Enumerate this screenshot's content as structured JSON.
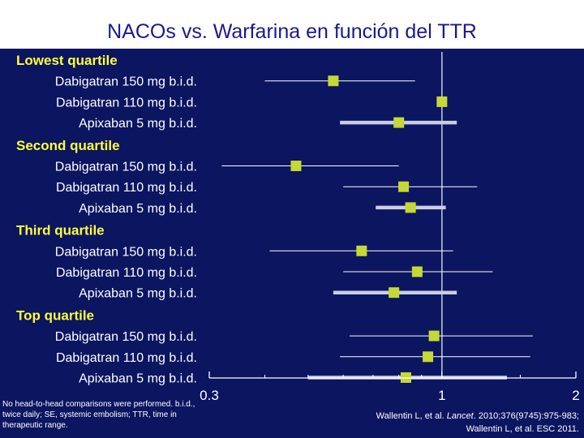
{
  "title": "NACOs vs. Warfarina en función del TTR",
  "chart_data": {
    "type": "forest",
    "x_scale": "log",
    "xlim": [
      0.3,
      2
    ],
    "reference_line": 1,
    "x_tick_labels": [
      "0.3",
      "1",
      "2"
    ],
    "groups": [
      {
        "label": "Lowest quartile",
        "rows": [
          {
            "label": "Dabigatran 150 mg b.i.d.",
            "estimate": 0.57,
            "ci": [
              0.4,
              0.87
            ],
            "ci_style": "thin"
          },
          {
            "label": "Dabigatran 110 mg b.i.d.",
            "estimate": 1.0,
            "ci": null,
            "ci_style": "none"
          },
          {
            "label": "Apixaban  5 mg b.i.d.",
            "estimate": 0.8,
            "ci": [
              0.59,
              1.08
            ],
            "ci_style": "thick"
          }
        ]
      },
      {
        "label": "Second quartile",
        "rows": [
          {
            "label": "Dabigatran 150 mg b.i.d.",
            "estimate": 0.47,
            "ci": [
              0.32,
              0.8
            ],
            "ci_style": "thin"
          },
          {
            "label": "Dabigatran 110 mg b.i.d.",
            "estimate": 0.82,
            "ci": [
              0.6,
              1.2
            ],
            "ci_style": "thin"
          },
          {
            "label": "Apixaban  5 mg b.i.d.",
            "estimate": 0.85,
            "ci": [
              0.71,
              1.02
            ],
            "ci_style": "thick"
          }
        ]
      },
      {
        "label": "Third quartile",
        "rows": [
          {
            "label": "Dabigatran 150 mg b.i.d.",
            "estimate": 0.66,
            "ci": [
              0.41,
              1.06
            ],
            "ci_style": "thin"
          },
          {
            "label": "Dabigatran 110 mg b.i.d.",
            "estimate": 0.88,
            "ci": [
              0.6,
              1.3
            ],
            "ci_style": "thin"
          },
          {
            "label": "Apixaban  5 mg b.i.d.",
            "estimate": 0.78,
            "ci": [
              0.57,
              1.08
            ],
            "ci_style": "thick"
          }
        ]
      },
      {
        "label": "Top quartile",
        "rows": [
          {
            "label": "Dabigatran 150 mg b.i.d.",
            "estimate": 0.96,
            "ci": [
              0.62,
              1.6
            ],
            "ci_style": "thin"
          },
          {
            "label": "Dabigatran 110 mg b.i.d.",
            "estimate": 0.93,
            "ci": [
              0.59,
              1.58
            ],
            "ci_style": "thin"
          },
          {
            "label": "Apixaban  5 mg b.i.d.",
            "estimate": 0.83,
            "ci": [
              0.5,
              1.4
            ],
            "ci_style": "thick"
          }
        ]
      }
    ],
    "colors": {
      "background": "#0b1560",
      "marker": "#c6d834",
      "ci_thin": "#ffffff",
      "ci_thick": "#c9cfe2",
      "group_label": "#ffff3a",
      "title": "#1a1a8c"
    }
  },
  "footnote": "No head-to-head comparisons were performed. b.i.d., twice daily; SE, systemic embolism; TTR, time in therapeutic range.",
  "references": {
    "line1_authors": "Wallentin L, et al. ",
    "line1_journal": "Lancet",
    "line1_rest": ". 2010;376(9745):975-983;",
    "line2": "Wallentin L, et al. ESC 2011."
  }
}
